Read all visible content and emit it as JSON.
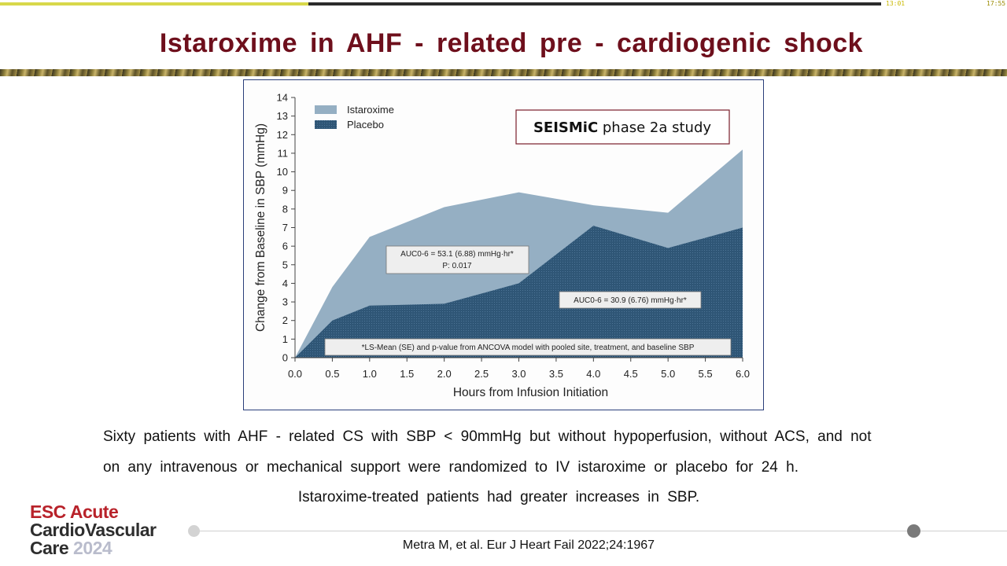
{
  "player": {
    "time_current": "13:01",
    "time_total": "17:55",
    "progress": 0.35
  },
  "slide": {
    "title": "Istaroxime  in  AHF - related  pre - cardiogenic  shock",
    "body_line1": "Sixty  patients  with  AHF - related  CS  with  SBP < 90mmHg  but  without  hypoperfusion, without  ACS, and not",
    "body_line2": "on  any  intravenous  or  mechanical  support  were  randomized  to  IV  istaroxime  or  placebo  for  24 h.",
    "body_line3": "Istaroxime-treated  patients  had  greater  increases  in  SBP.",
    "citation": "Metra M, et al. Eur J Heart Fail 2022;24:1967"
  },
  "logo": {
    "line1": "ESC Acute",
    "line2": "CardioVascular",
    "line3_word": "Care",
    "line3_year": "2024"
  },
  "colors": {
    "title": "#6e0f1c",
    "istaroxime": "#95afc3",
    "placebo": "#2f5676",
    "frame": "#2a3e7a",
    "logo_red": "#b8222a"
  },
  "chart_data": {
    "type": "area",
    "xlabel": "Hours from Infusion Initiation",
    "ylabel": "Change from Baseline in SBP (mmHg)",
    "xlim": [
      0,
      6
    ],
    "ylim": [
      0,
      14
    ],
    "x_ticks": [
      "0.0",
      "0.5",
      "1.0",
      "1.5",
      "2.0",
      "2.5",
      "3.0",
      "3.5",
      "4.0",
      "4.5",
      "5.0",
      "5.5",
      "6.0"
    ],
    "y_ticks": [
      "0",
      "1",
      "2",
      "3",
      "4",
      "5",
      "6",
      "7",
      "8",
      "9",
      "10",
      "11",
      "12",
      "13",
      "14"
    ],
    "x": [
      0,
      0.5,
      1.0,
      2.0,
      3.0,
      4.0,
      5.0,
      6.0
    ],
    "series": [
      {
        "name": "Istaroxime",
        "values": [
          0,
          3.8,
          6.5,
          8.1,
          8.9,
          8.2,
          7.8,
          11.2
        ]
      },
      {
        "name": "Placebo",
        "values": [
          0,
          2.0,
          2.8,
          2.9,
          4.0,
          7.1,
          5.9,
          7.0
        ]
      }
    ],
    "inset_title_bold": "SEISMiC",
    "inset_title_rest": " phase 2a study",
    "annotation_istaroxime_line1": "AUC0-6 = 53.1 (6.88) mmHg·hr*",
    "annotation_istaroxime_line2": "P: 0.017",
    "annotation_placebo": "AUC0-6 = 30.9 (6.76) mmHg·hr*",
    "footnote": "*LS-Mean (SE) and p-value from ANCOVA model with pooled site, treatment, and baseline SBP",
    "grid": false,
    "legend_position": "top-left"
  }
}
